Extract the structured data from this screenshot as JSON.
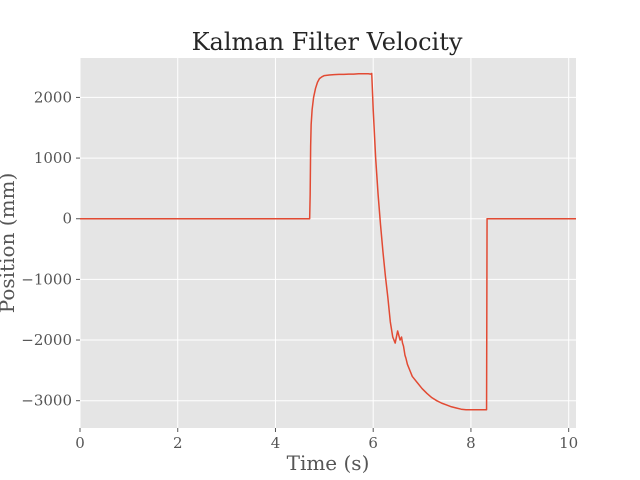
{
  "chart_data": {
    "type": "line",
    "title": "Kalman Filter Velocity",
    "xlabel": "Time (s)",
    "ylabel": "Position (mm)",
    "xlim": [
      0,
      10.15
    ],
    "ylim": [
      -3450,
      2650
    ],
    "x_ticks": [
      0,
      2,
      4,
      6,
      8,
      10
    ],
    "x_tick_labels": [
      "0",
      "2",
      "4",
      "6",
      "8",
      "10"
    ],
    "y_ticks": [
      -3000,
      -2000,
      -1000,
      0,
      1000,
      2000
    ],
    "y_tick_labels": [
      "−3000",
      "−2000",
      "−1000",
      "0",
      "1000",
      "2000"
    ],
    "grid": true,
    "series": [
      {
        "color": "#e24a33",
        "x": [
          0,
          4.7,
          4.71,
          4.72,
          4.73,
          4.75,
          4.78,
          4.82,
          4.86,
          4.9,
          4.95,
          5.0,
          5.1,
          5.2,
          5.3,
          5.4,
          5.5,
          5.6,
          5.7,
          5.8,
          5.9,
          5.95,
          5.97,
          6.0,
          6.05,
          6.1,
          6.15,
          6.2,
          6.25,
          6.3,
          6.35,
          6.4,
          6.45,
          6.5,
          6.55,
          6.58,
          6.6,
          6.62,
          6.63,
          6.65,
          6.67,
          6.7,
          6.75,
          6.8,
          6.9,
          7.0,
          7.1,
          7.2,
          7.3,
          7.4,
          7.5,
          7.6,
          7.7,
          7.8,
          7.9,
          8.0,
          8.1,
          8.2,
          8.3,
          8.32,
          8.33,
          8.4,
          9.0,
          10.15
        ],
        "y": [
          0,
          0,
          400,
          1200,
          1550,
          1800,
          2000,
          2150,
          2250,
          2310,
          2340,
          2360,
          2370,
          2375,
          2380,
          2380,
          2385,
          2385,
          2390,
          2390,
          2390,
          2385,
          2395,
          1800,
          1000,
          400,
          -100,
          -550,
          -950,
          -1300,
          -1700,
          -1950,
          -2050,
          -1850,
          -2000,
          -1950,
          -2050,
          -2100,
          -2150,
          -2250,
          -2300,
          -2400,
          -2500,
          -2600,
          -2700,
          -2800,
          -2880,
          -2950,
          -3000,
          -3040,
          -3070,
          -3100,
          -3120,
          -3140,
          -3150,
          -3150,
          -3150,
          -3150,
          -3150,
          -3150,
          0,
          0,
          0,
          0
        ]
      }
    ]
  }
}
